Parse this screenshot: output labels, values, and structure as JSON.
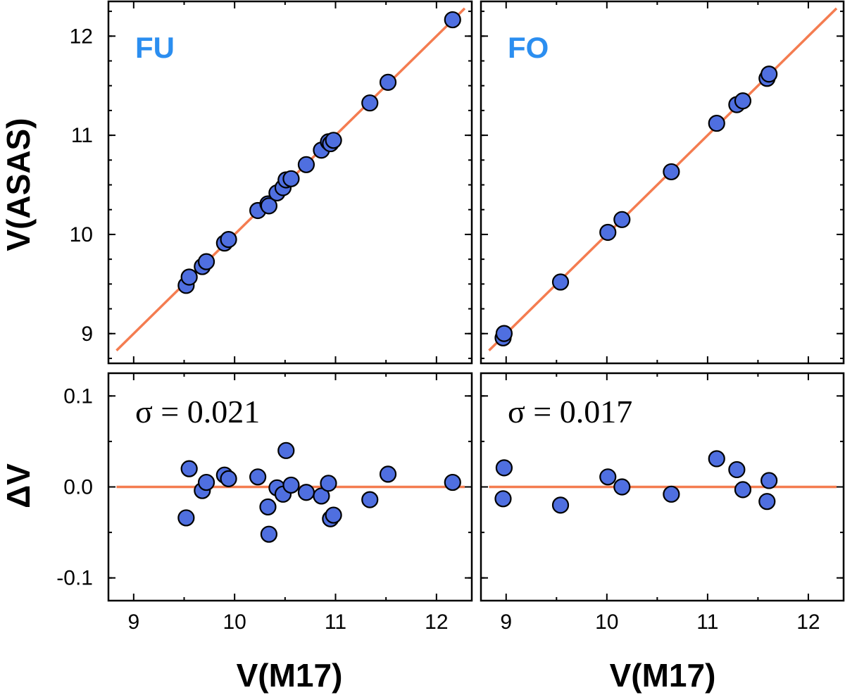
{
  "colors": {
    "marker": "#4f6fe0",
    "fit_line": "#f47c50",
    "panel_label": "#2b8ef0"
  },
  "chart_data": {
    "type": "scatter",
    "xlabel": "V(M17)",
    "ylabel_top": "V(ASAS)",
    "ylabel_bottom": "ΔV",
    "xlim": [
      8.75,
      12.35
    ],
    "ylim_top": [
      8.7,
      12.35
    ],
    "ylim_bottom": [
      -0.125,
      0.125
    ],
    "xticks": [
      "9",
      "10",
      "11",
      "12"
    ],
    "yticks_top": [
      "9",
      "10",
      "11",
      "12"
    ],
    "yticks_bottom": [
      "0.1",
      "0.0",
      "-0.1"
    ],
    "grid": false,
    "panels": [
      {
        "label": "FU",
        "sigma": "σ = 0.021",
        "points": [
          {
            "x": 9.52,
            "dv": -0.034
          },
          {
            "x": 9.55,
            "dv": 0.02
          },
          {
            "x": 9.68,
            "dv": -0.004
          },
          {
            "x": 9.72,
            "dv": 0.005
          },
          {
            "x": 9.9,
            "dv": 0.013
          },
          {
            "x": 9.94,
            "dv": 0.009
          },
          {
            "x": 10.23,
            "dv": 0.011
          },
          {
            "x": 10.33,
            "dv": -0.022
          },
          {
            "x": 10.34,
            "dv": -0.052
          },
          {
            "x": 10.42,
            "dv": -0.001
          },
          {
            "x": 10.48,
            "dv": -0.008
          },
          {
            "x": 10.51,
            "dv": 0.04
          },
          {
            "x": 10.56,
            "dv": 0.002
          },
          {
            "x": 10.71,
            "dv": -0.006
          },
          {
            "x": 10.86,
            "dv": -0.01
          },
          {
            "x": 10.93,
            "dv": 0.004
          },
          {
            "x": 10.95,
            "dv": -0.035
          },
          {
            "x": 10.98,
            "dv": -0.031
          },
          {
            "x": 11.34,
            "dv": -0.014
          },
          {
            "x": 11.52,
            "dv": 0.014
          },
          {
            "x": 12.16,
            "dv": 0.005
          }
        ]
      },
      {
        "label": "FO",
        "sigma": "σ = 0.017",
        "points": [
          {
            "x": 8.97,
            "dv": -0.013
          },
          {
            "x": 8.98,
            "dv": 0.021
          },
          {
            "x": 9.54,
            "dv": -0.02
          },
          {
            "x": 10.01,
            "dv": 0.011
          },
          {
            "x": 10.15,
            "dv": 0.0
          },
          {
            "x": 10.64,
            "dv": -0.008
          },
          {
            "x": 11.09,
            "dv": 0.031
          },
          {
            "x": 11.29,
            "dv": 0.019
          },
          {
            "x": 11.35,
            "dv": -0.003
          },
          {
            "x": 11.59,
            "dv": -0.016
          },
          {
            "x": 11.61,
            "dv": 0.007
          }
        ]
      }
    ]
  }
}
